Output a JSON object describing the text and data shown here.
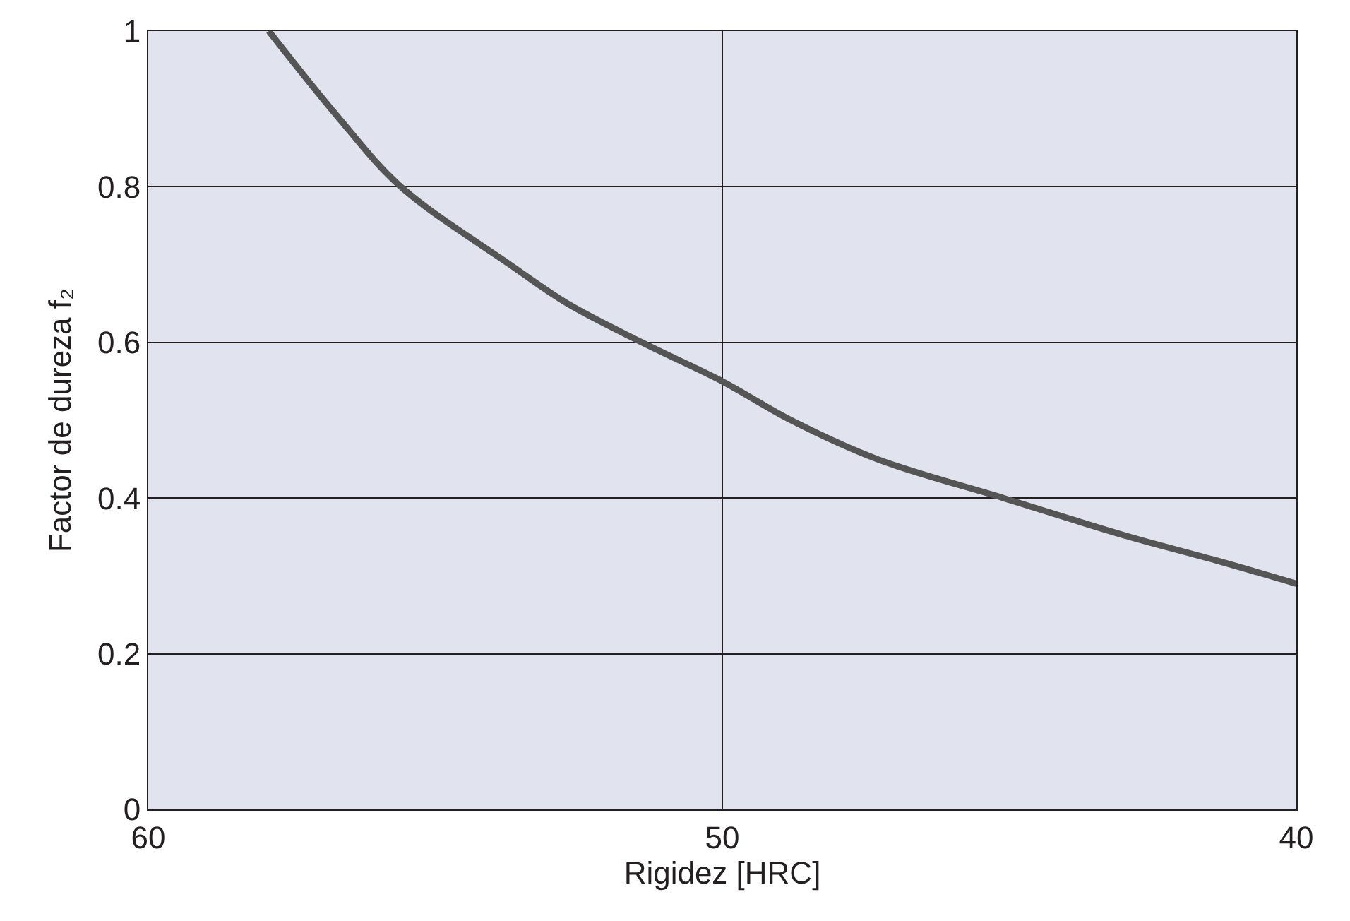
{
  "chart_data": {
    "type": "line",
    "xlabel": "Rigidez [HRC]",
    "ylabel": "Factor de dureza f₂",
    "x": [
      57.9,
      56.7,
      55.6,
      53.7,
      52.7,
      51.4,
      50,
      48.8,
      47.3,
      45.1,
      42.9,
      41.4,
      40
    ],
    "series": [
      {
        "color": "#555555",
        "values": [
          1.0,
          0.89,
          0.8,
          0.7,
          0.65,
          0.6,
          0.55,
          0.5,
          0.45,
          0.4,
          0.35,
          0.32,
          0.29
        ]
      }
    ],
    "xlim": [
      60,
      40
    ],
    "xticks": [
      60,
      50,
      40
    ],
    "ylim": [
      0,
      1
    ],
    "yticks": [
      0,
      0.2,
      0.4,
      0.6,
      0.8,
      1
    ],
    "grid": true,
    "marker": "none",
    "line_style": "solid"
  }
}
